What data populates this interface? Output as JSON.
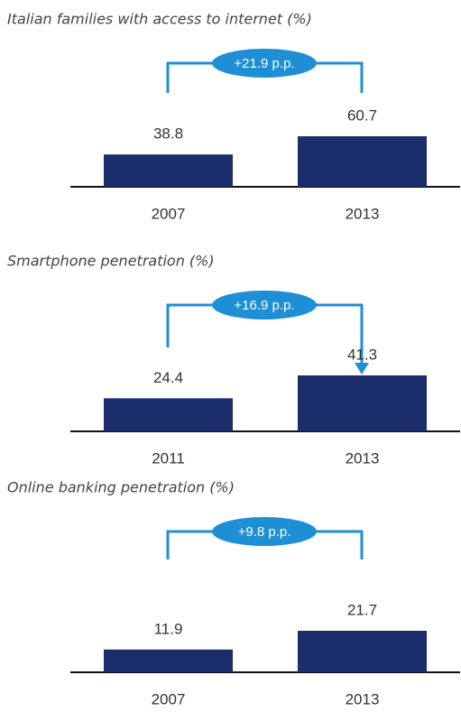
{
  "chart_data": [
    {
      "type": "bar",
      "title": "Italian families with access to internet (%)",
      "categories": [
        "2007",
        "2013"
      ],
      "values": [
        38.8,
        60.7
      ],
      "annotation": "+21.9 p.p.",
      "color": "#1b2d6b",
      "accent": "#1e8fd5"
    },
    {
      "type": "bar",
      "title": "Smartphone penetration (%)",
      "categories": [
        "2011",
        "2013"
      ],
      "values": [
        24.4,
        41.3
      ],
      "annotation": "+16.9 p.p.",
      "color": "#1b2d6b",
      "accent": "#1e8fd5"
    },
    {
      "type": "bar",
      "title": "Online banking penetration (%)",
      "categories": [
        "2007",
        "2013"
      ],
      "values": [
        11.9,
        21.7
      ],
      "annotation": "+9.8 p.p.",
      "color": "#1b2d6b",
      "accent": "#1e8fd5"
    }
  ]
}
